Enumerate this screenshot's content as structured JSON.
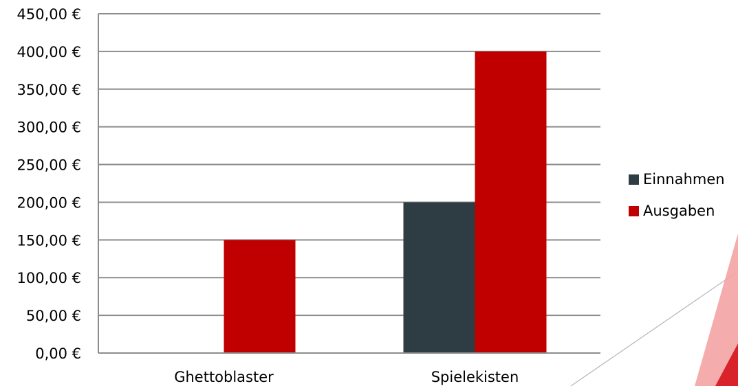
{
  "chart_data": {
    "type": "bar",
    "categories": [
      "Ghettoblaster",
      "Spielekisten"
    ],
    "series": [
      {
        "name": "Einnahmen",
        "values": [
          0,
          200
        ],
        "color": "#2e3d44"
      },
      {
        "name": "Ausgaben",
        "values": [
          150,
          400
        ],
        "color": "#c00000"
      }
    ],
    "ylim": [
      0,
      450
    ],
    "yticks": [
      0,
      50,
      100,
      150,
      200,
      250,
      300,
      350,
      400,
      450
    ],
    "ytick_labels": [
      "0,00 €",
      "50,00 €",
      "100,00 €",
      "150,00 €",
      "200,00 €",
      "250,00 €",
      "300,00 €",
      "350,00 €",
      "400,00 €",
      "450,00 €"
    ],
    "grid": true,
    "legend_position": "right",
    "decoration_colors": {
      "light": "#f4a3a3",
      "dark": "#d8232a",
      "line": "#b5b5b5"
    }
  }
}
